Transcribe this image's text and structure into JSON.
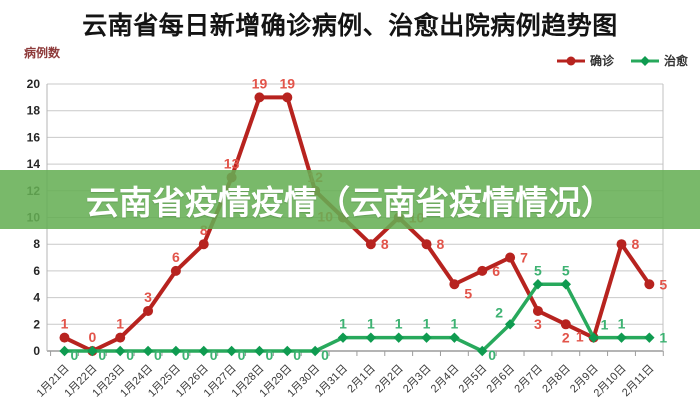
{
  "title": "云南省每日新增确诊病例、治愈出院病例趋势图",
  "banner": {
    "text": "云南省疫情疫情（云南省疫情情况）",
    "bg_color": "#65af54",
    "text_color": "#ffffff"
  },
  "chart_data": {
    "type": "line",
    "title": "云南省每日新增确诊病例、治愈出院病例趋势图",
    "ylabel": "病例数",
    "ylabel_color": "#8e3b3b",
    "xlabel": "",
    "ylim": [
      0,
      20
    ],
    "ytick_step": 2,
    "grid": true,
    "legend_position": "top-right",
    "categories": [
      "1月21日",
      "1月22日",
      "1月23日",
      "1月24日",
      "1月25日",
      "1月26日",
      "1月27日",
      "1月28日",
      "1月29日",
      "1月30日",
      "1月31日",
      "2月1日",
      "2月2日",
      "2月3日",
      "2月4日",
      "2月5日",
      "2月6日",
      "2月7日",
      "2月8日",
      "2月9日",
      "2月10日",
      "2月11日"
    ],
    "series": [
      {
        "name": "确诊",
        "marker": "circle",
        "color": "#b7231f",
        "marker_color": "#b7231f",
        "label_color": "#e2544a",
        "values": [
          1,
          0,
          1,
          3,
          6,
          8,
          13,
          19,
          19,
          12,
          10,
          8,
          10,
          8,
          5,
          6,
          7,
          3,
          2,
          1,
          8,
          5
        ],
        "label_pos": [
          "a",
          "a",
          "a",
          "a",
          "a",
          "a",
          "a",
          "a",
          "a",
          "a",
          "l",
          "r",
          "r",
          "r",
          "br",
          "r",
          "r",
          "b",
          "b",
          "l",
          "r",
          "r"
        ]
      },
      {
        "name": "治愈",
        "marker": "diamond",
        "color": "#28a95c",
        "marker_color": "#0f9b50",
        "label_color": "#3db272",
        "values": [
          0,
          0,
          0,
          0,
          0,
          0,
          0,
          0,
          0,
          0,
          1,
          1,
          1,
          1,
          1,
          0,
          2,
          5,
          5,
          1,
          1,
          1
        ],
        "label_pos": [
          "b0",
          "b0",
          "b0",
          "b0",
          "b0",
          "b0",
          "b0",
          "b0",
          "b0",
          "b0",
          "a",
          "a",
          "a",
          "a",
          "a",
          "b0",
          "al",
          "a",
          "a",
          "ar",
          "a",
          "r"
        ]
      }
    ]
  }
}
